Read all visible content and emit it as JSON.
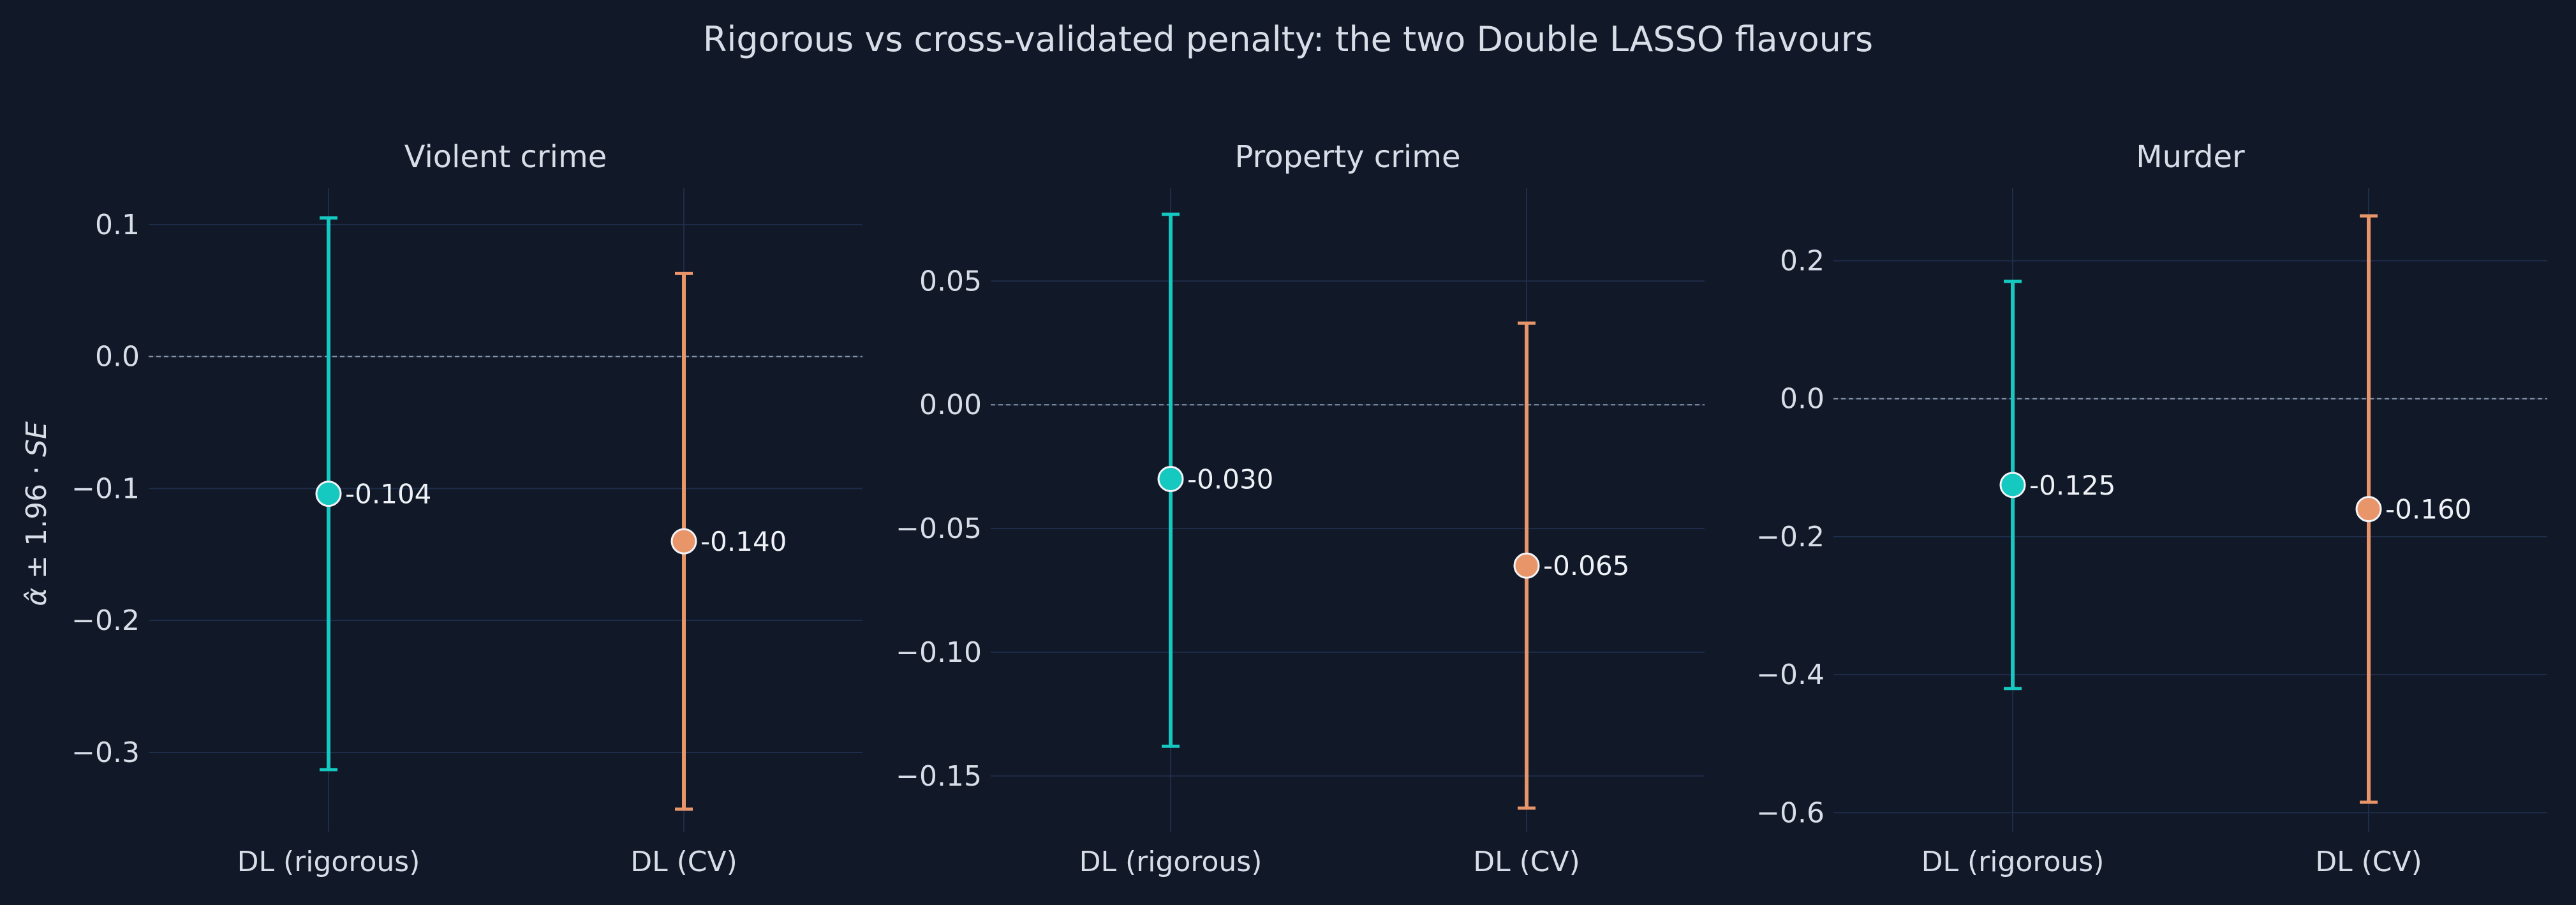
{
  "figure": {
    "title": "Rigorous vs cross-validated penalty: the two Double LASSO flavours",
    "ylabel_html": "<tspan font-style=\"italic\">α̂</tspan> ± 1.96 · <tspan font-style=\"italic\">SE</tspan>"
  },
  "colors": {
    "background": "#111827",
    "grid": "#1E2D4A",
    "zero_line": "#8A97A8",
    "text": "#D8DEE8",
    "rigorous": "#15C8C0",
    "cv": "#E8956A"
  },
  "chart_data": [
    {
      "type": "scatter",
      "title": "Violent crime",
      "categories": [
        "DL (rigorous)",
        "DL (CV)"
      ],
      "points": [
        {
          "category": "DL (rigorous)",
          "estimate": -0.104,
          "lower": -0.313,
          "upper": 0.105,
          "label": "-0.104",
          "color_key": "rigorous"
        },
        {
          "category": "DL (CV)",
          "estimate": -0.14,
          "lower": -0.343,
          "upper": 0.063,
          "label": "-0.140",
          "color_key": "cv"
        }
      ],
      "ylim": [
        -0.36,
        0.1275
      ],
      "yticks": [
        0.1,
        0.0,
        -0.1,
        -0.2,
        -0.3
      ],
      "yticklabels": [
        "0.1",
        "0.0",
        "−0.1",
        "−0.2",
        "−0.3"
      ],
      "zero_line": true,
      "grid": true
    },
    {
      "type": "scatter",
      "title": "Property crime",
      "categories": [
        "DL (rigorous)",
        "DL (CV)"
      ],
      "points": [
        {
          "category": "DL (rigorous)",
          "estimate": -0.03,
          "lower": -0.138,
          "upper": 0.077,
          "label": "-0.030",
          "color_key": "rigorous"
        },
        {
          "category": "DL (CV)",
          "estimate": -0.065,
          "lower": -0.163,
          "upper": 0.033,
          "label": "-0.065",
          "color_key": "cv"
        }
      ],
      "ylim": [
        -0.1725,
        0.0875
      ],
      "yticks": [
        0.05,
        0.0,
        -0.05,
        -0.1,
        -0.15
      ],
      "yticklabels": [
        "0.05",
        "0.00",
        "−0.05",
        "−0.10",
        "−0.15"
      ],
      "zero_line": true,
      "grid": true
    },
    {
      "type": "scatter",
      "title": "Murder",
      "categories": [
        "DL (rigorous)",
        "DL (CV)"
      ],
      "points": [
        {
          "category": "DL (rigorous)",
          "estimate": -0.125,
          "lower": -0.42,
          "upper": 0.17,
          "label": "-0.125",
          "color_key": "rigorous"
        },
        {
          "category": "DL (CV)",
          "estimate": -0.16,
          "lower": -0.585,
          "upper": 0.265,
          "label": "-0.160",
          "color_key": "cv"
        }
      ],
      "ylim": [
        -0.6275,
        0.305
      ],
      "yticks": [
        0.2,
        0.0,
        -0.2,
        -0.4,
        -0.6
      ],
      "yticklabels": [
        "0.2",
        "0.0",
        "−0.2",
        "−0.4",
        "−0.6"
      ],
      "zero_line": true,
      "grid": true
    }
  ]
}
